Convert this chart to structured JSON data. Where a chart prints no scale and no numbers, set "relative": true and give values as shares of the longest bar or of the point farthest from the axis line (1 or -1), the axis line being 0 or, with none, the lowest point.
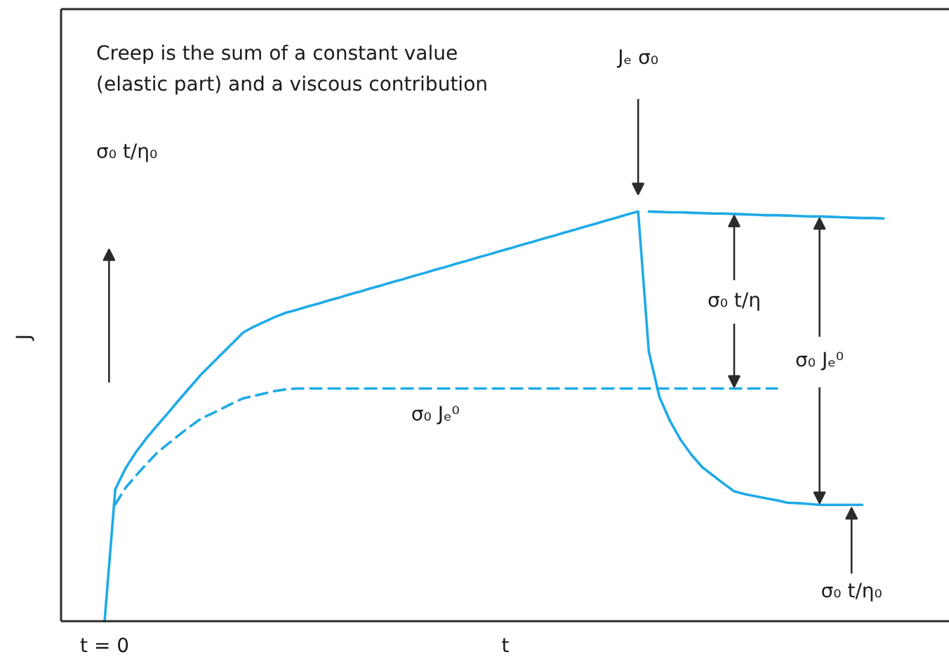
{
  "chart_data": {
    "type": "line",
    "relative": true,
    "xlabel": "t",
    "ylabel": "J",
    "categories": [
      null,
      null,
      null,
      null,
      null,
      null,
      null,
      null,
      null,
      null,
      null,
      null,
      null,
      null,
      null,
      null,
      null,
      null,
      null,
      null,
      null,
      null,
      null,
      null,
      null,
      null,
      null,
      null,
      null,
      null,
      null,
      null,
      null,
      null,
      null,
      null,
      null,
      null,
      null,
      null,
      null,
      null,
      null,
      null,
      null,
      null,
      null,
      null,
      null,
      null,
      null,
      null,
      null,
      null,
      null,
      null,
      null,
      null,
      null,
      null,
      null,
      null,
      null,
      null,
      null,
      null,
      null,
      null,
      null,
      null,
      null,
      null,
      null,
      null
    ],
    "series": [
      {
        "color": "#1eaae7",
        "line_style": "solid",
        "values": [
          0,
          0.322,
          0.375,
          0.415,
          0.449,
          0.48,
          0.51,
          0.541,
          0.571,
          0.601,
          0.627,
          0.653,
          0.679,
          0.705,
          0.719,
          0.731,
          0.743,
          0.753,
          0.76,
          0.768,
          0.775,
          0.783,
          0.79,
          0.798,
          0.805,
          0.813,
          0.82,
          0.828,
          0.835,
          0.843,
          0.85,
          0.858,
          0.865,
          0.873,
          0.88,
          0.888,
          0.895,
          0.903,
          0.91,
          0.918,
          0.925,
          0.933,
          0.94,
          0.948,
          0.955,
          0.963,
          0.97,
          0.978,
          0.985,
          0.993,
          1.0,
          0.658,
          0.547,
          0.488,
          0.442,
          0.406,
          0.376,
          0.356,
          0.336,
          0.317,
          0.31,
          0.305,
          0.3,
          0.295,
          0.289,
          0.288,
          0.286,
          0.284,
          0.284,
          0.284,
          0.284,
          0.284,
          null,
          null
        ]
      },
      {
        "color": "#1eaae7",
        "line_style": "solid",
        "values": [
          null,
          null,
          null,
          null,
          null,
          null,
          null,
          null,
          null,
          null,
          null,
          null,
          null,
          null,
          null,
          null,
          null,
          null,
          null,
          null,
          null,
          null,
          null,
          null,
          null,
          null,
          null,
          null,
          null,
          null,
          null,
          null,
          null,
          null,
          null,
          null,
          null,
          null,
          null,
          null,
          null,
          null,
          null,
          null,
          null,
          null,
          null,
          null,
          null,
          null,
          null,
          1.0,
          0.999,
          0.998,
          0.998,
          0.997,
          0.996,
          0.995,
          0.995,
          0.994,
          0.993,
          0.992,
          0.991,
          0.991,
          0.99,
          0.989,
          0.988,
          0.988,
          0.987,
          0.986,
          0.985,
          0.984,
          0.984,
          0.983
        ]
      },
      {
        "color": "#1eaae7",
        "line_style": "dashed",
        "values": [
          null,
          0.285,
          0.327,
          0.357,
          0.386,
          0.413,
          0.434,
          0.455,
          0.475,
          0.494,
          0.506,
          0.519,
          0.532,
          0.544,
          0.55,
          0.556,
          0.562,
          0.566,
          0.568,
          0.568,
          0.568,
          0.568,
          0.568,
          0.568,
          0.568,
          0.568,
          0.568,
          0.568,
          0.568,
          0.568,
          0.568,
          0.568,
          0.568,
          0.568,
          0.568,
          0.568,
          0.568,
          0.568,
          0.568,
          0.568,
          0.568,
          0.568,
          0.568,
          0.568,
          0.568,
          0.568,
          0.568,
          0.568,
          0.568,
          0.568,
          0.568,
          0.568,
          0.568,
          0.568,
          0.568,
          0.568,
          0.568,
          0.568,
          0.568,
          0.568,
          0.568,
          0.568,
          0.568,
          0.568,
          null,
          null,
          null,
          null,
          null,
          null,
          null,
          null,
          null,
          null
        ]
      }
    ],
    "annotations": [
      "Creep is the sum of a constant value (elastic part) and a viscous contribution",
      "Jₑ σ₀",
      "σ₀ t/η₀",
      "σ₀ t/η",
      "σ₀ Jₑ⁰",
      "σ₀ Jₑ⁰",
      "σ₀ t/η₀",
      "t = 0"
    ]
  }
}
